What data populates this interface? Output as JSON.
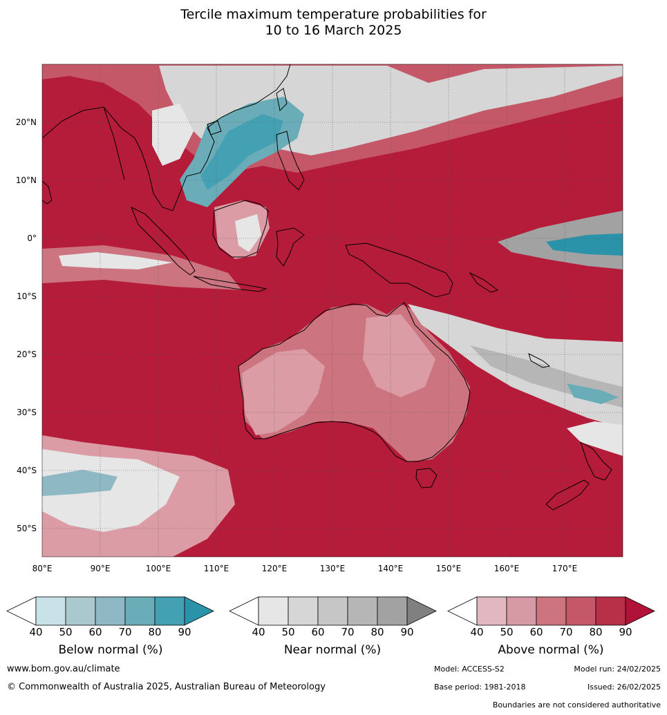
{
  "title": {
    "line1": "Tercile maximum temperature probabilities for",
    "line2": "10 to 16 March 2025"
  },
  "map": {
    "lon_range": [
      80,
      180
    ],
    "lat_range": [
      -55,
      30
    ],
    "lon_ticks": [
      "80°E",
      "90°E",
      "100°E",
      "110°E",
      "120°E",
      "130°E",
      "140°E",
      "150°E",
      "160°E",
      "170°E"
    ],
    "lat_ticks": [
      "20°N",
      "10°N",
      "0°",
      "10°S",
      "20°S",
      "30°S",
      "40°S",
      "50°S"
    ],
    "colors": {
      "above_dominant": "#b41c3a",
      "above_light": "#dc9ca6",
      "near": "#d6d6d6",
      "below": "#4aa1b4"
    }
  },
  "legends": [
    {
      "label": "Below normal (%)",
      "ticks": [
        "40",
        "50",
        "60",
        "70",
        "80",
        "90"
      ],
      "colors": [
        "#ffffff",
        "#c9e2e8",
        "#a9c9cf",
        "#8eb8c3",
        "#6aadb9",
        "#44a1b3",
        "#2b93a9"
      ]
    },
    {
      "label": "Near normal (%)",
      "ticks": [
        "40",
        "50",
        "60",
        "70",
        "80",
        "90"
      ],
      "colors": [
        "#ffffff",
        "#e6e6e6",
        "#d6d6d6",
        "#c6c6c6",
        "#b6b6b6",
        "#a2a2a2",
        "#808080"
      ]
    },
    {
      "label": "Above normal (%)",
      "ticks": [
        "40",
        "50",
        "60",
        "70",
        "80",
        "90"
      ],
      "colors": [
        "#ffffff",
        "#e2b7bf",
        "#d59aa4",
        "#cc7480",
        "#c55868",
        "#b83048",
        "#b01238"
      ]
    }
  ],
  "footer": {
    "website": "www.bom.gov.au/climate",
    "copyright": "© Commonwealth of Australia 2025, Australian Bureau of Meteorology",
    "model": "Model: ACCESS-S2",
    "model_run": "Model run: 24/02/2025",
    "base_period": "Base period: 1981-2018",
    "issued": "Issued: 26/02/2025",
    "disclaimer": "Boundaries are not considered authoritative"
  }
}
